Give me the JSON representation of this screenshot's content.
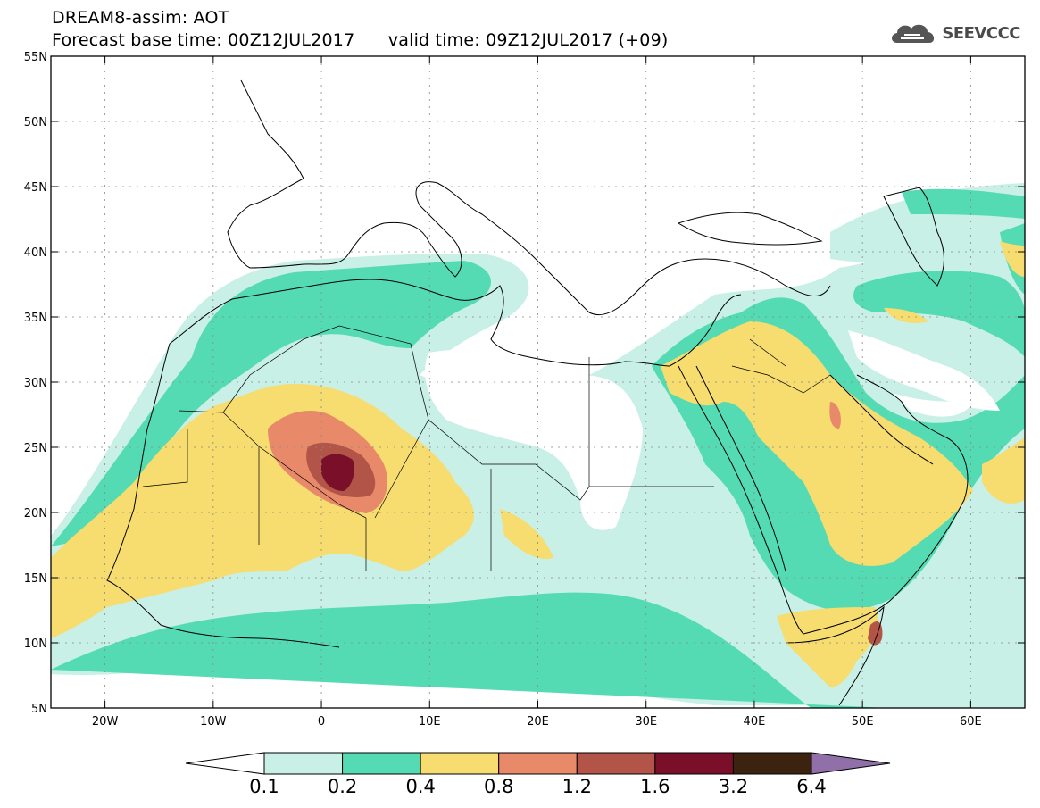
{
  "header": {
    "title_line1": "DREAM8-assim: AOT",
    "title_line2_base": "Forecast base time: 00Z12JUL2017",
    "title_line2_valid": "valid time: 09Z12JUL2017 (+09)"
  },
  "logo": {
    "text": "SEEVCCC",
    "icon": "cloud-logo-icon"
  },
  "map": {
    "lat_labels": [
      "55N",
      "50N",
      "45N",
      "40N",
      "35N",
      "30N",
      "25N",
      "20N",
      "15N",
      "10N",
      "5N"
    ],
    "lon_labels": [
      "20W",
      "10W",
      "0",
      "10E",
      "20E",
      "30E",
      "40E",
      "50E",
      "60E"
    ],
    "extent": {
      "lon": [
        -25,
        65
      ],
      "lat": [
        5,
        55
      ]
    },
    "grid": true
  },
  "colorbar": {
    "levels": [
      "0.1",
      "0.2",
      "0.4",
      "0.8",
      "1.2",
      "1.6",
      "3.2",
      "6.4"
    ],
    "colors": [
      "#ffffff",
      "#c8f0e6",
      "#55dbb4",
      "#f7dc6f",
      "#e8896a",
      "#b25548",
      "#7a0f2a",
      "#3b2310",
      "#9170aa"
    ]
  }
}
